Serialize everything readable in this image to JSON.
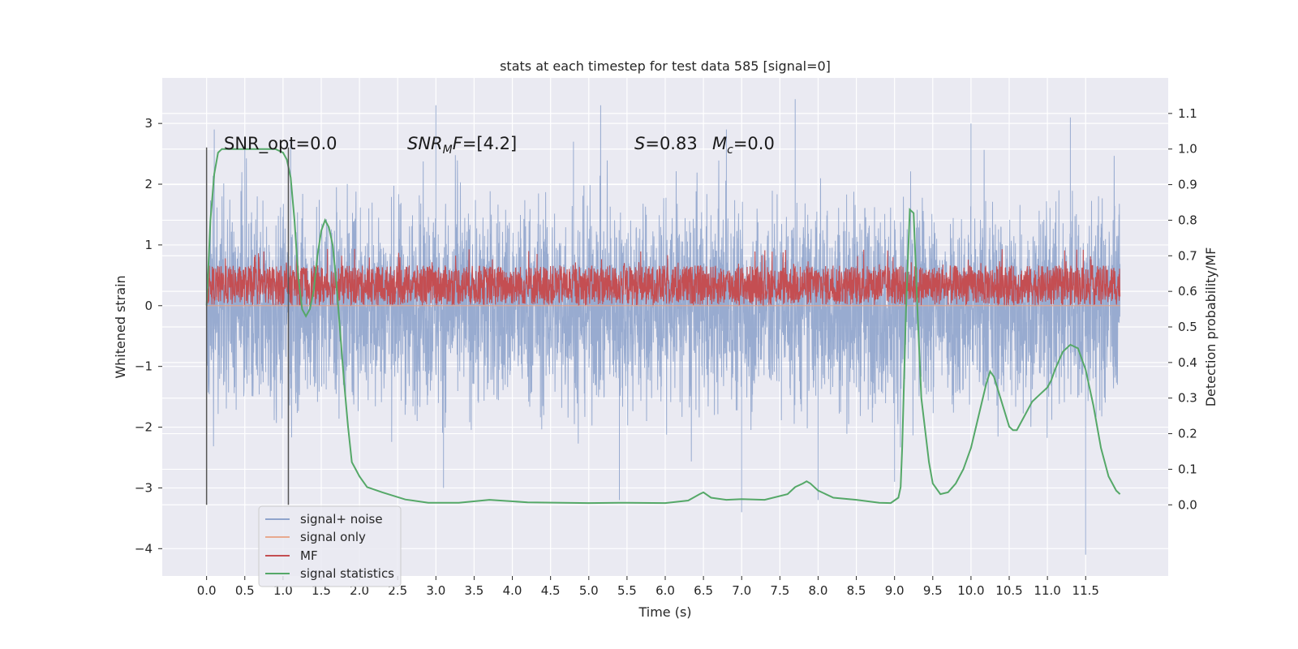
{
  "chart_data": {
    "type": "line",
    "title": "stats at each timestep for test data 585 [signal=0]",
    "xlabel": "Time (s)",
    "ylabel_left": "Whitened strain",
    "ylabel_right": "Detection probability/MF",
    "xlim": [
      -0.58,
      12.58
    ],
    "ylim_left": [
      -4.45,
      3.75
    ],
    "ylim_right": [
      -0.2,
      1.2
    ],
    "x_ticks": [
      "0.0",
      "0.5",
      "1.0",
      "1.5",
      "2.0",
      "2.5",
      "3.0",
      "3.5",
      "4.0",
      "4.5",
      "5.0",
      "5.5",
      "6.0",
      "6.5",
      "7.0",
      "7.5",
      "8.0",
      "8.5",
      "9.0",
      "9.5",
      "10.0",
      "10.5",
      "11.0",
      "11.5"
    ],
    "y_ticks_left": [
      "3",
      "2",
      "1",
      "0",
      "−1",
      "−2",
      "−3",
      "−4"
    ],
    "y_ticks_right": [
      "1.1",
      "1.0",
      "0.9",
      "0.8",
      "0.7",
      "0.6",
      "0.5",
      "0.4",
      "0.3",
      "0.2",
      "0.1",
      "0.0"
    ],
    "grid": true,
    "legend_position": "bottom-left",
    "annotations": {
      "snr_opt": "SNR_opt=0.0",
      "snr_mf_prefix": "SNR",
      "snr_mf_sub": "M",
      "snr_mf_mid": "F",
      "snr_mf_value": "=[4.2]",
      "s_sym": "S",
      "s_value": "=0.83",
      "mc_sym": "M",
      "mc_sub": "c",
      "mc_value": "=0.0"
    },
    "vertical_lines_x": [
      0.0,
      1.07
    ],
    "series": [
      {
        "name": "signal+ noise",
        "axis": "left",
        "color": "#8fa4cc",
        "description_range": [
          0.0,
          11.95
        ],
        "band": {
          "center": 0.0,
          "core_amplitude": 1.5,
          "peak_max": 3.3,
          "peak_min": -4.1
        },
        "peaks": [
          [
            0.1,
            2.9
          ],
          [
            0.5,
            2.7
          ],
          [
            1.1,
            2.7
          ],
          [
            3.0,
            3.3
          ],
          [
            4.8,
            2.7
          ],
          [
            6.8,
            2.9
          ],
          [
            7.7,
            3.4
          ],
          [
            10.0,
            3.0
          ],
          [
            11.3,
            3.1
          ],
          [
            8.0,
            -3.2
          ],
          [
            5.4,
            -3.2
          ],
          [
            7.0,
            -3.4
          ],
          [
            3.1,
            -3.0
          ],
          [
            11.5,
            -4.1
          ],
          [
            9.0,
            -2.9
          ]
        ]
      },
      {
        "name": "signal only",
        "axis": "left",
        "color": "#e8a98e",
        "values_constant": 0.0
      },
      {
        "name": "MF",
        "axis": "right",
        "color": "#c44e52",
        "band": {
          "center": 0.6,
          "amplitude": 0.07,
          "peak_max": 0.72
        }
      },
      {
        "name": "signal statistics",
        "axis": "right",
        "color": "#55a868",
        "x": [
          0.0,
          0.05,
          0.1,
          0.15,
          0.2,
          0.3,
          0.5,
          0.7,
          0.9,
          1.0,
          1.05,
          1.1,
          1.15,
          1.2,
          1.25,
          1.3,
          1.35,
          1.4,
          1.45,
          1.5,
          1.55,
          1.6,
          1.65,
          1.7,
          1.75,
          1.8,
          1.85,
          1.9,
          1.95,
          2.0,
          2.1,
          2.3,
          2.6,
          2.9,
          3.3,
          3.7,
          4.2,
          5.0,
          5.5,
          6.0,
          6.3,
          6.45,
          6.5,
          6.6,
          6.8,
          7.0,
          7.3,
          7.6,
          7.7,
          7.8,
          7.85,
          7.9,
          8.0,
          8.2,
          8.5,
          8.8,
          8.95,
          9.05,
          9.08,
          9.1,
          9.15,
          9.2,
          9.25,
          9.3,
          9.35,
          9.45,
          9.5,
          9.6,
          9.7,
          9.8,
          9.9,
          10.0,
          10.1,
          10.2,
          10.25,
          10.3,
          10.4,
          10.5,
          10.55,
          10.6,
          10.7,
          10.8,
          10.9,
          11.0,
          11.05,
          11.1,
          11.2,
          11.3,
          11.4,
          11.5,
          11.6,
          11.7,
          11.8,
          11.9,
          11.95
        ],
        "y": [
          0.56,
          0.8,
          0.93,
          0.99,
          1.0,
          1.0,
          1.0,
          1.0,
          1.0,
          0.99,
          0.97,
          0.92,
          0.8,
          0.64,
          0.55,
          0.53,
          0.55,
          0.6,
          0.7,
          0.77,
          0.8,
          0.78,
          0.73,
          0.62,
          0.48,
          0.34,
          0.22,
          0.12,
          0.1,
          0.08,
          0.05,
          0.035,
          0.015,
          0.006,
          0.006,
          0.014,
          0.007,
          0.005,
          0.006,
          0.005,
          0.012,
          0.03,
          0.035,
          0.02,
          0.014,
          0.016,
          0.014,
          0.03,
          0.05,
          0.06,
          0.066,
          0.06,
          0.04,
          0.02,
          0.014,
          0.006,
          0.005,
          0.02,
          0.05,
          0.16,
          0.55,
          0.83,
          0.82,
          0.55,
          0.3,
          0.12,
          0.06,
          0.03,
          0.035,
          0.06,
          0.1,
          0.16,
          0.25,
          0.34,
          0.375,
          0.36,
          0.29,
          0.22,
          0.21,
          0.21,
          0.25,
          0.29,
          0.31,
          0.33,
          0.35,
          0.38,
          0.43,
          0.45,
          0.44,
          0.38,
          0.28,
          0.16,
          0.08,
          0.04,
          0.03
        ]
      }
    ]
  }
}
